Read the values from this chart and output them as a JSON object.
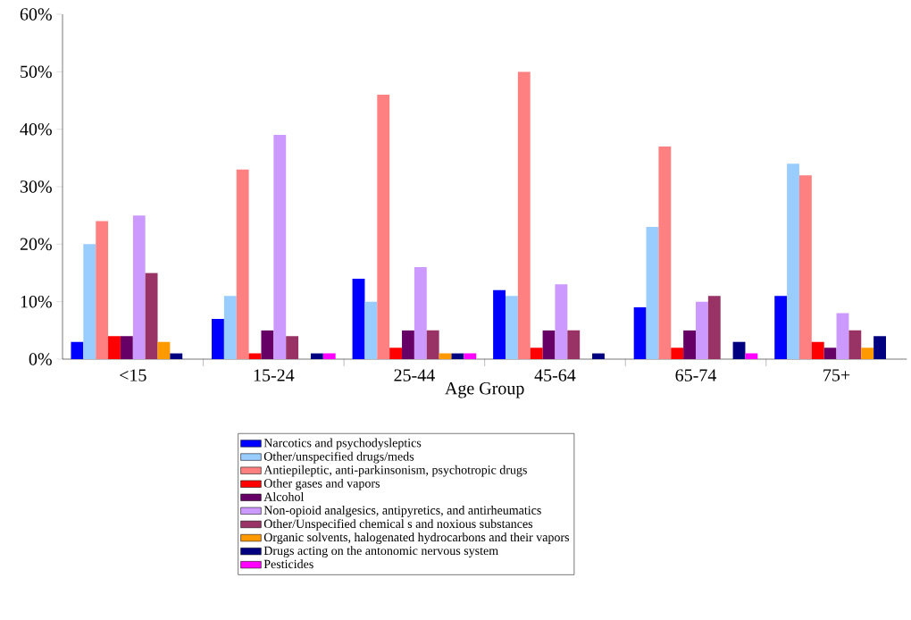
{
  "chart_data": {
    "type": "bar",
    "xlabel": "Age Group",
    "categories": [
      "<15",
      "15-24",
      "25-44",
      "45-64",
      "65-74",
      "75+"
    ],
    "ylim": [
      0,
      60
    ],
    "yticks": [
      {
        "value": 0,
        "label": "0%"
      },
      {
        "value": 10,
        "label": "10%"
      },
      {
        "value": 20,
        "label": "20%"
      },
      {
        "value": 30,
        "label": "30%"
      },
      {
        "value": 40,
        "label": "40%"
      },
      {
        "value": 50,
        "label": "50%"
      },
      {
        "value": 60,
        "label": "60%"
      }
    ],
    "legend": "bottom",
    "series": [
      {
        "name": "Narcotics and psychodysleptics",
        "color": "#0000ff",
        "values": [
          3,
          7,
          14,
          12,
          9,
          11
        ]
      },
      {
        "name": "Other/unspecified drugs/meds",
        "color": "#99ccff",
        "values": [
          20,
          11,
          10,
          11,
          23,
          34
        ]
      },
      {
        "name": "Antiepileptic, anti-parkinsonism, psychotropic drugs",
        "color": "#ff8080",
        "values": [
          24,
          33,
          46,
          50,
          37,
          32
        ]
      },
      {
        "name": "Other gases and vapors",
        "color": "#ff0000",
        "values": [
          4,
          1,
          2,
          2,
          2,
          3
        ]
      },
      {
        "name": "Alcohol",
        "color": "#660066",
        "values": [
          4,
          5,
          5,
          5,
          5,
          2
        ]
      },
      {
        "name": "Non-opioid analgesics, antipyretics, and antirheumatics",
        "color": "#cc99ff",
        "values": [
          25,
          39,
          16,
          13,
          10,
          8
        ]
      },
      {
        "name": "Other/Unspecified chemical s and noxious substances",
        "color": "#993366",
        "values": [
          15,
          4,
          5,
          5,
          11,
          5
        ]
      },
      {
        "name": "Organic solvents, halogenated hydrocarbons and their vapors",
        "color": "#ff9900",
        "values": [
          3,
          0,
          1,
          0,
          0,
          2
        ]
      },
      {
        "name": "Drugs acting on the antonomic nervous system",
        "color": "#000080",
        "values": [
          1,
          1,
          1,
          1,
          3,
          4
        ]
      },
      {
        "name": "Pesticides",
        "color": "#ff00ff",
        "values": [
          0,
          1,
          1,
          0,
          1,
          0
        ]
      }
    ]
  }
}
